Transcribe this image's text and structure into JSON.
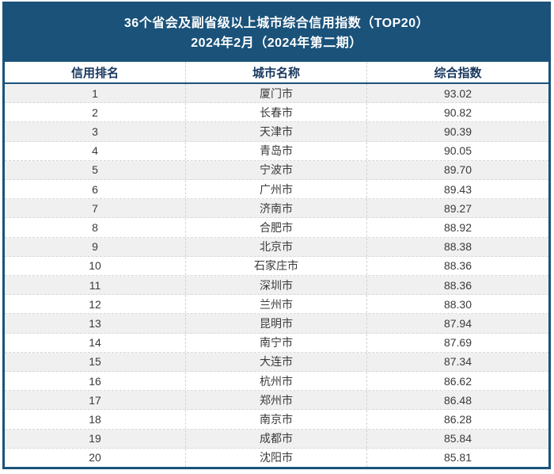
{
  "title": {
    "line1": "36个省会及副省级以上城市综合信用指数（TOP20）",
    "line2": "2024年2月（2024年第二期）"
  },
  "chart_data": {
    "type": "table",
    "title": "36个省会及副省级以上城市综合信用指数（TOP20）",
    "subtitle": "2024年2月（2024年第二期）",
    "columns": [
      "信用排名",
      "城市名称",
      "综合指数"
    ],
    "rows": [
      {
        "rank": "1",
        "city": "厦门市",
        "index": "93.02"
      },
      {
        "rank": "2",
        "city": "长春市",
        "index": "90.82"
      },
      {
        "rank": "3",
        "city": "天津市",
        "index": "90.39"
      },
      {
        "rank": "4",
        "city": "青岛市",
        "index": "90.05"
      },
      {
        "rank": "5",
        "city": "宁波市",
        "index": "89.70"
      },
      {
        "rank": "6",
        "city": "广州市",
        "index": "89.43"
      },
      {
        "rank": "7",
        "city": "济南市",
        "index": "89.27"
      },
      {
        "rank": "8",
        "city": "合肥市",
        "index": "88.92"
      },
      {
        "rank": "9",
        "city": "北京市",
        "index": "88.38"
      },
      {
        "rank": "10",
        "city": "石家庄市",
        "index": "88.36"
      },
      {
        "rank": "11",
        "city": "深圳市",
        "index": "88.36"
      },
      {
        "rank": "12",
        "city": "兰州市",
        "index": "88.30"
      },
      {
        "rank": "13",
        "city": "昆明市",
        "index": "87.94"
      },
      {
        "rank": "14",
        "city": "南宁市",
        "index": "87.69"
      },
      {
        "rank": "15",
        "city": "大连市",
        "index": "87.34"
      },
      {
        "rank": "16",
        "city": "杭州市",
        "index": "86.62"
      },
      {
        "rank": "17",
        "city": "郑州市",
        "index": "86.48"
      },
      {
        "rank": "18",
        "city": "南京市",
        "index": "86.28"
      },
      {
        "rank": "19",
        "city": "成都市",
        "index": "85.84"
      },
      {
        "rank": "20",
        "city": "沈阳市",
        "index": "85.81"
      }
    ]
  },
  "colors": {
    "navy": "#1a527a",
    "title_text": "#ffffff",
    "column_header_text": "#17375e",
    "stripe": "#f0f0f0",
    "row_divider": "#d8d8d8",
    "column_divider": "#ccd6de",
    "cell_text": "#3a3a3a"
  }
}
